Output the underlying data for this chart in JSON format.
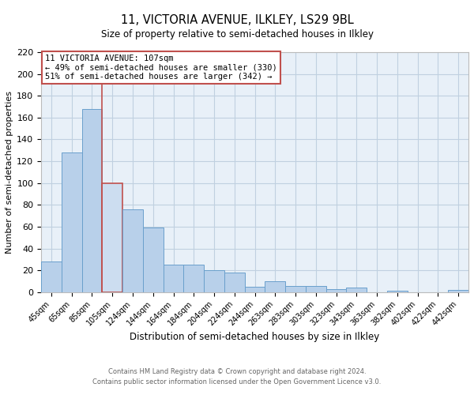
{
  "title_line1": "11, VICTORIA AVENUE, ILKLEY, LS29 9BL",
  "title_line2": "Size of property relative to semi-detached houses in Ilkley",
  "xlabel": "Distribution of semi-detached houses by size in Ilkley",
  "ylabel": "Number of semi-detached properties",
  "categories": [
    "45sqm",
    "65sqm",
    "85sqm",
    "105sqm",
    "124sqm",
    "144sqm",
    "164sqm",
    "184sqm",
    "204sqm",
    "224sqm",
    "244sqm",
    "263sqm",
    "283sqm",
    "303sqm",
    "323sqm",
    "343sqm",
    "363sqm",
    "382sqm",
    "402sqm",
    "422sqm",
    "442sqm"
  ],
  "values": [
    28,
    128,
    168,
    100,
    76,
    59,
    25,
    25,
    20,
    18,
    5,
    10,
    6,
    6,
    3,
    4,
    0,
    1,
    0,
    0,
    2
  ],
  "bar_color": "#b8d0ea",
  "bar_edge_color": "#6aa0cc",
  "highlight_bar_index": 3,
  "highlight_bar_color": "#ccddf0",
  "highlight_bar_edge_color": "#c0504d",
  "vline_color": "#c0504d",
  "annotation_box_text": "11 VICTORIA AVENUE: 107sqm\n← 49% of semi-detached houses are smaller (330)\n51% of semi-detached houses are larger (342) →",
  "annotation_box_edge_color": "#c0504d",
  "annotation_box_face_color": "#ffffff",
  "ylim": [
    0,
    220
  ],
  "yticks": [
    0,
    20,
    40,
    60,
    80,
    100,
    120,
    140,
    160,
    180,
    200,
    220
  ],
  "footer_line1": "Contains HM Land Registry data © Crown copyright and database right 2024.",
  "footer_line2": "Contains public sector information licensed under the Open Government Licence v3.0.",
  "bg_color": "#ffffff",
  "grid_color": "#c0d0e0",
  "plot_bg_color": "#e8f0f8"
}
